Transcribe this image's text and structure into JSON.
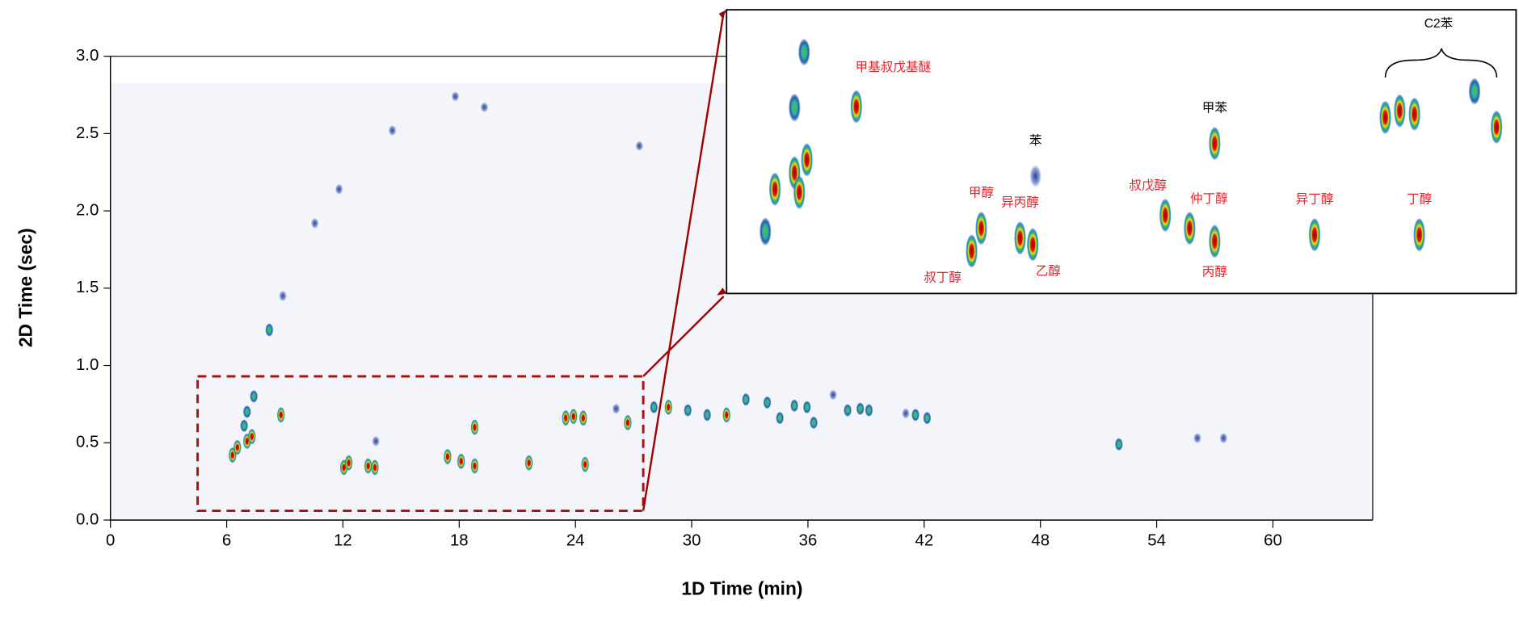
{
  "chart_data": [
    {
      "type": "scatter",
      "xlabel": "1D Time (min)",
      "ylabel": "2D Time (sec)",
      "xlim": [
        0,
        65.15
      ],
      "ylim": [
        0,
        3
      ],
      "xticks": [
        0,
        6,
        12,
        18,
        24,
        30,
        36,
        42,
        48,
        54,
        60
      ],
      "yticks": [
        {
          "value": 0,
          "label": "0.0"
        },
        0.5,
        {
          "value": 1,
          "label": "1.0"
        },
        1.5,
        {
          "value": 2,
          "label": "2.0"
        },
        2.5,
        {
          "value": 3,
          "label": "3.0"
        }
      ],
      "x": [
        6.3,
        6.55,
        7.05,
        7.3,
        6.9,
        8.8,
        7.05,
        7.4,
        8.2,
        8.9,
        10.55,
        11.8,
        14.55,
        12.05,
        12.3,
        13.3,
        13.65,
        13.7,
        17.4,
        18.1,
        18.8,
        18.8,
        21.6,
        24.5,
        23.5,
        23.9,
        24.4,
        26.1,
        26.7,
        28.05,
        28.8,
        29.8,
        30.8,
        31.8,
        32.8,
        33.9,
        34.55,
        35.3,
        35.95,
        36.3,
        37.3,
        38.05,
        38.7,
        39.15,
        41.05,
        41.55,
        42.15,
        52.05,
        56.1,
        57.45,
        19.3,
        17.8,
        27.3
      ],
      "y": [
        0.42,
        0.47,
        0.51,
        0.54,
        0.61,
        0.68,
        0.7,
        0.8,
        1.23,
        1.45,
        1.92,
        2.14,
        2.52,
        0.34,
        0.37,
        0.35,
        0.34,
        0.51,
        0.41,
        0.38,
        0.35,
        0.6,
        0.37,
        0.36,
        0.66,
        0.67,
        0.66,
        0.72,
        0.63,
        0.73,
        0.73,
        0.71,
        0.68,
        0.68,
        0.78,
        0.76,
        0.66,
        0.74,
        0.73,
        0.63,
        0.81,
        0.71,
        0.72,
        0.71,
        0.69,
        0.68,
        0.66,
        0.49,
        0.53,
        0.53,
        2.67,
        2.74,
        2.42
      ],
      "intensity": [
        1,
        0.9,
        1,
        1,
        0.5,
        1,
        0.5,
        0.5,
        0.6,
        0.2,
        0.2,
        0.2,
        0.2,
        1,
        1,
        1,
        1,
        0.2,
        1,
        1,
        1,
        1,
        1,
        1,
        1,
        1,
        1,
        0.2,
        1,
        0.5,
        1,
        0.5,
        0.5,
        1,
        0.5,
        0.5,
        0.5,
        0.5,
        0.5,
        0.5,
        0.2,
        0.5,
        0.5,
        0.5,
        0.2,
        0.5,
        0.5,
        0.5,
        0.2,
        0.2,
        0.1,
        0.1,
        0.1
      ]
    },
    {
      "type": "scatter",
      "xlim": [
        4.5,
        27.5
      ],
      "ylim": [
        0.06,
        0.93
      ],
      "x": [
        5.63,
        5.91,
        6.48,
        6.76,
        6.48,
        6.62,
        6.84,
        8.28,
        11.64,
        11.92,
        13.05,
        13.42,
        13.5,
        17.28,
        17.99,
        18.72,
        18.72,
        21.63,
        24.68,
        23.69,
        24.11,
        24.54,
        26.93,
        26.29
      ],
      "y": [
        0.25,
        0.38,
        0.63,
        0.8,
        0.43,
        0.37,
        0.47,
        0.633,
        0.19,
        0.26,
        0.23,
        0.21,
        0.42,
        0.3,
        0.26,
        0.22,
        0.52,
        0.24,
        0.24,
        0.6,
        0.62,
        0.61,
        0.57,
        0.68
      ],
      "intensity": [
        0.6,
        1,
        0.6,
        0.5,
        1,
        1,
        1,
        1,
        1,
        1,
        1,
        1,
        0.2,
        1,
        1,
        1,
        1,
        1,
        1,
        1,
        1,
        1,
        1,
        0.5
      ],
      "annotations": [
        {
          "text": "甲基叔戊基醚",
          "x": 8.28,
          "y": 0.633,
          "color": "#e8202a",
          "position": "above-right"
        },
        {
          "text": "叔丁醇",
          "x": 11.64,
          "y": 0.19,
          "color": "#e8202a",
          "position": "below-left"
        },
        {
          "text": "甲醇",
          "x": 11.92,
          "y": 0.26,
          "color": "#e8202a",
          "position": "above"
        },
        {
          "text": "异丙醇",
          "x": 13.05,
          "y": 0.23,
          "color": "#e8202a",
          "position": "above"
        },
        {
          "text": "乙醇",
          "x": 13.42,
          "y": 0.21,
          "color": "#e8202a",
          "position": "below-right"
        },
        {
          "text": "苯",
          "x": 13.5,
          "y": 0.42,
          "color": "#000000",
          "position": "above"
        },
        {
          "text": "叔戊醇",
          "x": 17.28,
          "y": 0.3,
          "color": "#e8202a",
          "position": "above-left"
        },
        {
          "text": "仲丁醇",
          "x": 17.99,
          "y": 0.26,
          "color": "#e8202a",
          "position": "above-right"
        },
        {
          "text": "丙醇",
          "x": 18.72,
          "y": 0.22,
          "color": "#e8202a",
          "position": "below"
        },
        {
          "text": "甲苯",
          "x": 18.72,
          "y": 0.52,
          "color": "#000000",
          "position": "above"
        },
        {
          "text": "异丁醇",
          "x": 21.63,
          "y": 0.24,
          "color": "#e8202a",
          "position": "above"
        },
        {
          "text": "丁醇",
          "x": 24.68,
          "y": 0.24,
          "color": "#e8202a",
          "position": "above"
        }
      ],
      "bracket_label": "C2苯"
    }
  ]
}
